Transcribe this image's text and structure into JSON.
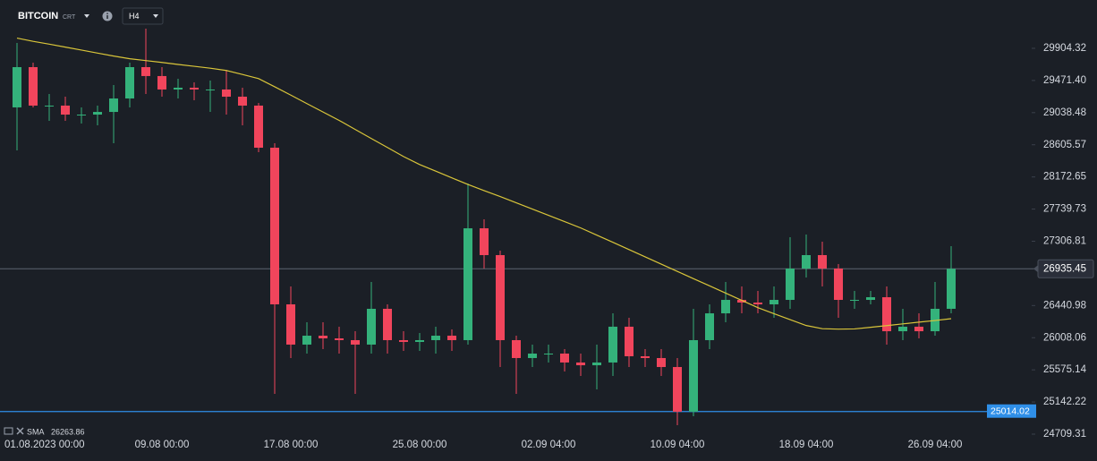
{
  "chart_data": {
    "type": "candlestick",
    "title": "BITCOIN",
    "subtitle": "CRT",
    "timeframe": "H4",
    "categories": [
      null,
      "01.08.2023 00:00",
      null,
      null,
      null,
      null,
      null,
      null,
      null,
      "09.08 00:00",
      null,
      null,
      null,
      null,
      null,
      null,
      null,
      "17.08 00:00",
      null,
      null,
      null,
      null,
      null,
      null,
      null,
      "25.08 00:00",
      null,
      null,
      null,
      null,
      null,
      null,
      null,
      "02.09 04:00",
      null,
      null,
      null,
      null,
      null,
      null,
      null,
      "10.09 04:00",
      null,
      null,
      null,
      null,
      null,
      null,
      null,
      "18.09 04:00",
      null,
      null,
      null,
      null,
      null,
      null,
      null,
      "26.09 04:00",
      null
    ],
    "open": [
      29109,
      29651,
      29133,
      29133,
      29012,
      29012,
      29048,
      29229,
      29651,
      29531,
      29350,
      29374,
      29350,
      29350,
      29253,
      29133,
      28566,
      26457,
      25915,
      26035,
      25999,
      25975,
      25915,
      26397,
      25975,
      25951,
      25975,
      26035,
      25975,
      27481,
      27120,
      25975,
      25734,
      25794,
      25794,
      25674,
      25637,
      25674,
      26156,
      25758,
      25734,
      25613,
      25011,
      25975,
      26336,
      26517,
      26481,
      26457,
      26517,
      26939,
      27120,
      26939,
      26517,
      26517,
      26553,
      26095,
      26156,
      26095,
      26397
    ],
    "high": [
      29977,
      29711,
      29289,
      29253,
      29109,
      29133,
      29410,
      29711,
      30169,
      29651,
      29494,
      29446,
      29470,
      29615,
      29374,
      29169,
      28627,
      26698,
      26216,
      26216,
      26156,
      26095,
      26758,
      26457,
      26095,
      26071,
      26156,
      26120,
      28084,
      27602,
      27180,
      26035,
      25915,
      25915,
      25854,
      25794,
      25915,
      26336,
      26276,
      25854,
      25854,
      25734,
      26397,
      26457,
      26758,
      26698,
      26638,
      26698,
      27361,
      27397,
      27301,
      26999,
      26638,
      26638,
      26698,
      26397,
      26336,
      26758,
      27240
    ],
    "low": [
      28530,
      29109,
      28928,
      28928,
      28892,
      28868,
      28627,
      29109,
      29289,
      29253,
      29229,
      29205,
      29048,
      29012,
      28868,
      28506,
      25252,
      25734,
      25794,
      25854,
      25794,
      25252,
      25794,
      25794,
      25830,
      25830,
      25794,
      25830,
      25915,
      26939,
      25613,
      25252,
      25613,
      25674,
      25553,
      25493,
      25312,
      25493,
      25613,
      25613,
      25493,
      24830,
      24950,
      25854,
      26216,
      26336,
      26336,
      26276,
      26397,
      26819,
      26698,
      26276,
      26397,
      26457,
      25915,
      25975,
      25999,
      26035,
      26336
    ],
    "close": [
      29651,
      29133,
      29133,
      29012,
      29012,
      29048,
      29229,
      29651,
      29531,
      29350,
      29374,
      29350,
      29350,
      29253,
      29133,
      28566,
      26457,
      25915,
      26035,
      25999,
      25975,
      25915,
      26397,
      25975,
      25951,
      25975,
      26035,
      25975,
      27481,
      27120,
      25975,
      25734,
      25794,
      25794,
      25674,
      25637,
      25674,
      26156,
      25758,
      25734,
      25613,
      25011,
      25975,
      26336,
      26517,
      26481,
      26457,
      26517,
      26939,
      27120,
      26939,
      26517,
      26517,
      26553,
      26095,
      26156,
      26095,
      26397,
      26935.45
    ],
    "up_color": "#34b27b",
    "down_color": "#f1455c",
    "sma": {
      "name": "SMA",
      "color": "#d9c53a",
      "values": [
        30042,
        29998,
        29961,
        29921,
        29881,
        29840,
        29800,
        29764,
        29739,
        29714,
        29687,
        29662,
        29637,
        29606,
        29552,
        29497,
        29387,
        29274,
        29160,
        29047,
        28934,
        28812,
        28690,
        28569,
        28447,
        28340,
        28250,
        28160,
        28071,
        27989,
        27908,
        27824,
        27740,
        27656,
        27571,
        27486,
        27389,
        27292,
        27194,
        27096,
        26999,
        26901,
        26803,
        26706,
        26608,
        26511,
        26413,
        26331,
        26251,
        26172,
        26129,
        26123,
        26126,
        26148,
        26171,
        26194,
        26217,
        26239,
        26263.86
      ]
    },
    "alert_line": {
      "value": 25014.02,
      "color": "#2f8fe8"
    },
    "ylim": [
      24649,
      30555
    ],
    "yticks": [
      29904.32,
      {
        "value": 29471.4,
        "label": "29471.40"
      },
      29038.48,
      28605.57,
      28172.65,
      27739.73,
      27306.81,
      26440.98,
      26008.06,
      25575.14,
      25142.22,
      24709.31
    ],
    "grid": false
  }
}
